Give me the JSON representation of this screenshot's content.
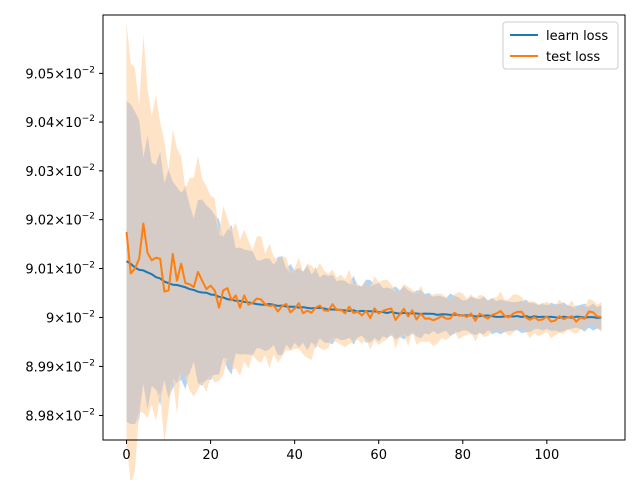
{
  "chart_data": {
    "type": "line",
    "title": "",
    "xlabel": "",
    "ylabel": "",
    "y_scale": "log",
    "xlim": [
      -5.6,
      118.6
    ],
    "ylim": [
      0.08975,
      0.09062
    ],
    "xticks": [
      0,
      20,
      40,
      60,
      80,
      100
    ],
    "xtick_labels": [
      "0",
      "20",
      "40",
      "60",
      "80",
      "100"
    ],
    "yticks": [
      0.0898,
      0.0899,
      0.09,
      0.0901,
      0.0902,
      0.0903,
      0.0904,
      0.0905
    ],
    "ytick_labels": [
      {
        "mantissa": "8.98",
        "base": "10",
        "exp": "−2"
      },
      {
        "mantissa": "8.99",
        "base": "10",
        "exp": "−2"
      },
      {
        "mantissa": "9",
        "base": "10",
        "exp": "−2"
      },
      {
        "mantissa": "9.01",
        "base": "10",
        "exp": "−2"
      },
      {
        "mantissa": "9.02",
        "base": "10",
        "exp": "−2"
      },
      {
        "mantissa": "9.03",
        "base": "10",
        "exp": "−2"
      },
      {
        "mantissa": "9.04",
        "base": "10",
        "exp": "−2"
      },
      {
        "mantissa": "9.05",
        "base": "10",
        "exp": "−2"
      }
    ],
    "legend_position": "top-right",
    "n_points": 114,
    "series": [
      {
        "name": "learn loss",
        "color": "#1f77b4",
        "band_color": "#a9cdf0",
        "anchors_x": [
          0,
          2,
          5,
          10,
          15,
          20,
          25,
          30,
          40,
          50,
          60,
          70,
          80,
          90,
          100,
          113
        ],
        "anchors_y": [
          0.090115,
          0.090102,
          0.090092,
          0.09007,
          0.090058,
          0.090047,
          0.090036,
          0.090029,
          0.090022,
          0.090016,
          0.090011,
          0.090007,
          0.090004,
          0.090002,
          0.090001,
          0.09
        ],
        "noise": 1.5e-06,
        "band_anchor_x": [
          0,
          10,
          20,
          30,
          40,
          50,
          60,
          70,
          80,
          90,
          100,
          113
        ],
        "band_half_width": [
          0.00029,
          0.0002,
          0.00015,
          0.000105,
          8.2e-05,
          6.6e-05,
          5.2e-05,
          4.2e-05,
          3.6e-05,
          3.1e-05,
          2.7e-05,
          2.4e-05
        ]
      },
      {
        "name": "test loss",
        "color": "#ff7f0e",
        "band_color": "#ffd9b3",
        "anchors_x": [
          0,
          1,
          2,
          3,
          4,
          5,
          6,
          7,
          8,
          9,
          10,
          11,
          12,
          13,
          14,
          15,
          16,
          17,
          18,
          19,
          20,
          21,
          22,
          23,
          24,
          25,
          26,
          27,
          28,
          30,
          35,
          40,
          45,
          50,
          55,
          60,
          65,
          70,
          75,
          80,
          85,
          90,
          95,
          100,
          105,
          113
        ],
        "anchors_y": [
          0.090175,
          0.09009,
          0.0901,
          0.09012,
          0.090192,
          0.090132,
          0.090117,
          0.090122,
          0.09012,
          0.090053,
          0.090055,
          0.09013,
          0.090075,
          0.09011,
          0.09007,
          0.090068,
          0.090062,
          0.090093,
          0.090075,
          0.090058,
          0.090065,
          0.090055,
          0.09002,
          0.090055,
          0.09006,
          0.090035,
          0.090045,
          0.09002,
          0.090045,
          0.09003,
          0.090025,
          0.090018,
          0.09002,
          0.090015,
          0.090012,
          0.090008,
          0.090006,
          0.090008,
          0.090003,
          0.090005,
          0.090002,
          0.090003,
          0.09,
          0.090002,
          0.09,
          0.090001
        ],
        "noise": 1.2e-05,
        "band_anchor_x": [
          0,
          10,
          20,
          30,
          40,
          50,
          60,
          70,
          80,
          90,
          100,
          113
        ],
        "band_half_width": [
          0.00038,
          0.00025,
          0.00018,
          0.00012,
          9e-05,
          7.2e-05,
          5.8e-05,
          4.8e-05,
          4e-05,
          3.4e-05,
          3e-05,
          2.7e-05
        ]
      }
    ],
    "overlap_band_color": "#d5ccc7"
  }
}
